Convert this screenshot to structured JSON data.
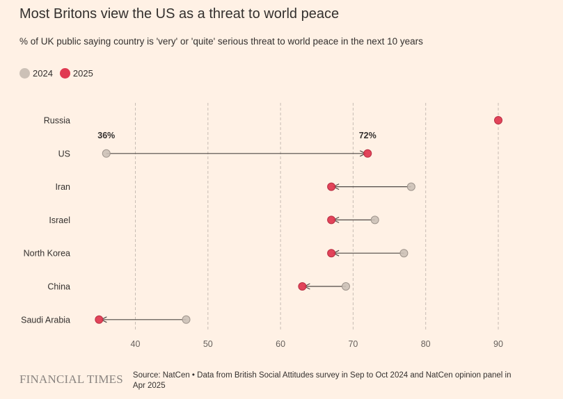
{
  "header": {
    "title": "Most Britons view the US as a threat to world peace",
    "subtitle": "% of UK public saying country is 'very' or 'quite' serious threat to world peace in the next 10 years"
  },
  "colors": {
    "background": "#fff1e5",
    "series_2024": "#ccc1b7",
    "series_2025": "#e03a52",
    "grid": "#c7bcb3",
    "line": "#4d4845"
  },
  "footer": {
    "logo": "FINANCIAL TIMES",
    "source": "Source: NatCen • Data from British Social Attitudes survey in Sep to Oct 2024 and NatCen opinion panel in Apr 2025"
  },
  "chart_data": {
    "type": "scatter",
    "subtype": "dumbbell",
    "categories": [
      "Russia",
      "US",
      "Iran",
      "Israel",
      "North Korea",
      "China",
      "Saudi Arabia"
    ],
    "series": [
      {
        "name": "2024",
        "values": [
          null,
          36,
          78,
          73,
          77,
          69,
          47
        ]
      },
      {
        "name": "2025",
        "values": [
          90,
          72,
          67,
          67,
          67,
          63,
          35
        ]
      }
    ],
    "annotations": [
      {
        "category": "US",
        "series": "2024",
        "label": "36%"
      },
      {
        "category": "US",
        "series": "2025",
        "label": "72%"
      }
    ],
    "xticks": [
      40,
      50,
      60,
      70,
      80,
      90
    ],
    "xlim": [
      34,
      92
    ],
    "grid": "vertical-dashed",
    "legend": "top-left"
  }
}
